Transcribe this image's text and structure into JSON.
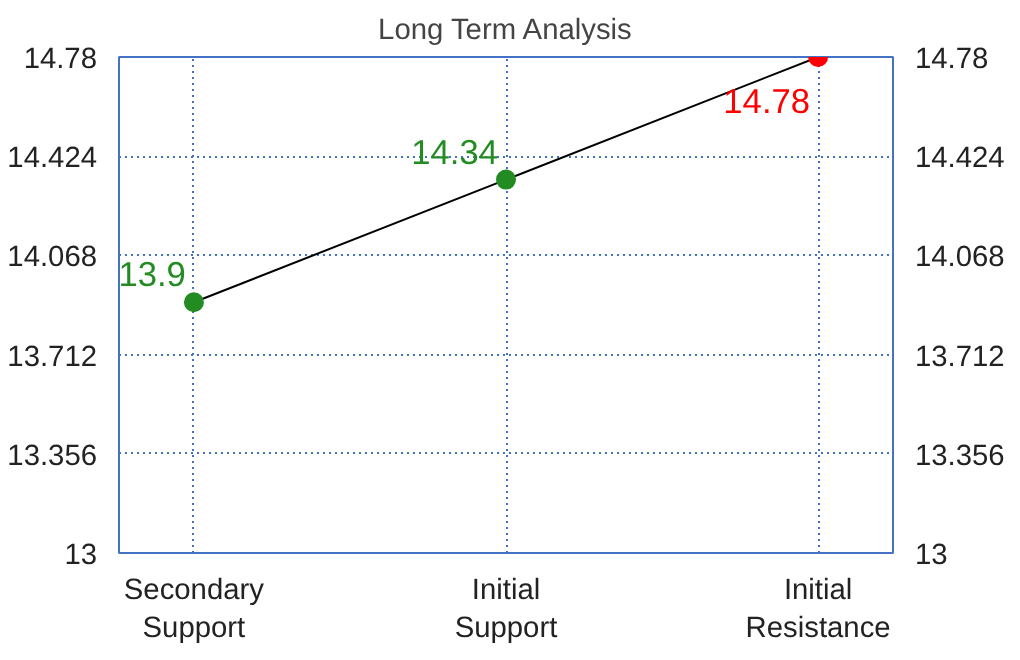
{
  "chart_data": {
    "type": "line",
    "title": "Long Term Analysis",
    "categories": [
      "Secondary\nSupport",
      "Initial\nSupport",
      "Initial\nResistance"
    ],
    "values": [
      13.9,
      14.34,
      14.78
    ],
    "colors": [
      "#228b22",
      "#228b22",
      "#ff0000"
    ],
    "color": "#000000",
    "data_labels": true,
    "marker": "circle",
    "ylim": [
      13,
      14.78
    ],
    "yticks": [
      13,
      13.356,
      13.712,
      14.068,
      14.424,
      14.78
    ],
    "y2lim": [
      13,
      14.78
    ],
    "y2ticks": [
      13,
      13.356,
      13.712,
      14.068,
      14.424,
      14.78
    ],
    "grid": true
  }
}
